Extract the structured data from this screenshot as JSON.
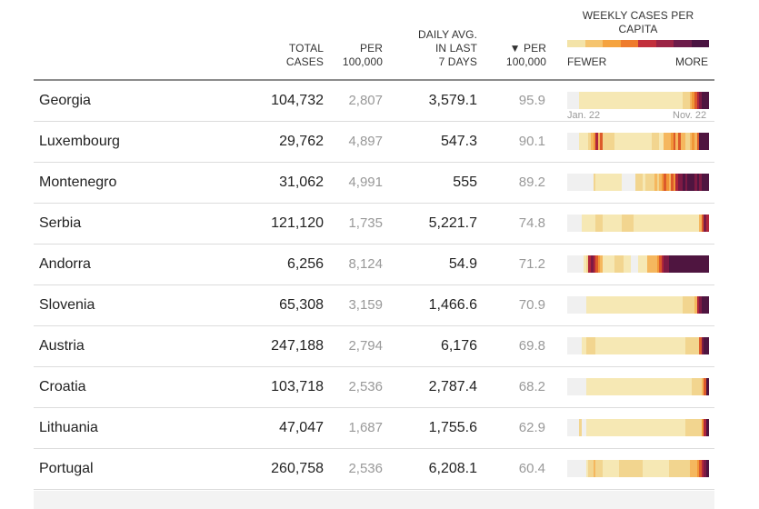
{
  "header": {
    "total_line1": "TOTAL",
    "total_line2": "CASES",
    "per_line1": "PER",
    "per_line2": "100,000",
    "daily_line1": "DAILY AVG.",
    "daily_line2": "IN LAST",
    "daily_line3": "7 DAYS",
    "perday_line1": "▼ PER",
    "perday_line2": "100,000",
    "weekly_line1": "WEEKLY CASES PER",
    "weekly_line2": "CAPITA",
    "legend_fewer": "FEWER",
    "legend_more": "MORE",
    "legend_colors": [
      "#f3e3a8",
      "#f5c46e",
      "#f5a33f",
      "#ee7b2c",
      "#c2303c",
      "#9b2445",
      "#6d1c4a",
      "#4a1442"
    ]
  },
  "heatmap_labels": {
    "start": "Jan. 22",
    "end": "Nov. 22"
  },
  "palette": {
    "0": "#f0f0f0",
    "1": "#f6e8b4",
    "2": "#f2d58f",
    "3": "#f5b75e",
    "4": "#f19738",
    "5": "#dd5a2a",
    "6": "#b0263b",
    "7": "#7e1a44",
    "8": "#4f1540"
  },
  "rows": [
    {
      "name": "Georgia",
      "total": "104,732",
      "per": "2,807",
      "daily": "3,579.1",
      "perday": "95.9",
      "heat": "000001111111111111111111111111111111111111111111122234567888"
    },
    {
      "name": "Luxembourg",
      "total": "29,762",
      "per": "4,897",
      "daily": "547.3",
      "perday": "90.1",
      "heat": "000001111234635222221111111111111111222113334535332234358888"
    },
    {
      "name": "Montenegro",
      "total": "31,062",
      "per": "4,991",
      "daily": "555",
      "perday": "89.2",
      "heat": "000000000002111111111110000002221222232345435467787888787888"
    },
    {
      "name": "Serbia",
      "total": "121,120",
      "per": "1,735",
      "daily": "5,221.7",
      "perday": "74.8",
      "heat": "000000111111222111111112222211111111111111111111111111113576"
    },
    {
      "name": "Andorra",
      "total": "6,256",
      "per": "8,124",
      "daily": "54.9",
      "perday": "71.2",
      "heat": "000000012676543111112222111000111133334567788888888888888888"
    },
    {
      "name": "Slovenia",
      "total": "65,308",
      "per": "3,159",
      "daily": "1,466.6",
      "perday": "70.9",
      "heat": "000000001111111111111111111111111111111111111111122222367888"
    },
    {
      "name": "Austria",
      "total": "247,188",
      "per": "2,794",
      "daily": "6,176",
      "perday": "69.8",
      "heat": "000000112222111111111111111111111111111111111111112222225788"
    },
    {
      "name": "Croatia",
      "total": "103,718",
      "per": "2,536",
      "daily": "2,787.4",
      "perday": "68.2",
      "heat": "000000001111111111111111111111111111111111111111111112222358"
    },
    {
      "name": "Lithuania",
      "total": "47,047",
      "per": "1,687",
      "daily": "1,755.6",
      "perday": "62.9",
      "heat": "000002001111111111111111111111111111111111111111112222222468"
    },
    {
      "name": "Portugal",
      "total": "260,758",
      "per": "2,536",
      "daily": "6,208.1",
      "perday": "60.4",
      "heat": "000000001223222111111122222222221111111111122222222233345678"
    }
  ]
}
